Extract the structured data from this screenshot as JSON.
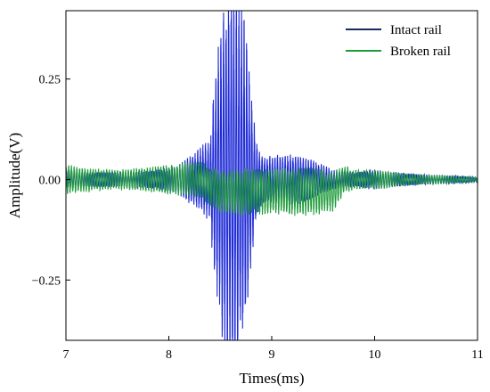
{
  "chart_data": {
    "type": "line",
    "title": "",
    "xlabel": "Times(ms)",
    "ylabel": "Amplitude(V)",
    "xlim": [
      7,
      11
    ],
    "ylim": [
      -0.4,
      0.42
    ],
    "xticks": [
      7,
      8,
      9,
      10,
      11
    ],
    "xtick_labels": [
      "7",
      "8",
      "9",
      "10",
      "11"
    ],
    "yticks": [
      -0.25,
      0,
      0.25
    ],
    "ytick_labels": [
      "−0.25",
      "0.00",
      "0.25"
    ],
    "grid": false,
    "legend_position": "top-right",
    "series": [
      {
        "name": "Intact rail",
        "color": "#1f2bd6",
        "legend_color": "#1b2a5c",
        "envelope": {
          "x": [
            7.0,
            7.2,
            7.5,
            7.9,
            8.1,
            8.2,
            8.3,
            8.4,
            8.45,
            8.5,
            8.55,
            8.6,
            8.65,
            8.7,
            8.75,
            8.8,
            8.85,
            8.9,
            9.0,
            9.2,
            9.4,
            9.6,
            9.8,
            10.0,
            10.2,
            10.5,
            10.8,
            11.0
          ],
          "amp": [
            0.02,
            0.015,
            0.015,
            0.02,
            0.03,
            0.05,
            0.065,
            0.09,
            0.22,
            0.3,
            0.37,
            0.4,
            0.39,
            0.37,
            0.3,
            0.18,
            0.08,
            0.05,
            0.05,
            0.055,
            0.04,
            0.02,
            0.015,
            0.02,
            0.015,
            0.01,
            0.008,
            0.005
          ]
        },
        "frequency_khz": 40
      },
      {
        "name": "Broken rail",
        "color": "#1e9b3a",
        "legend_color": "#1e9b3a",
        "envelope": {
          "x": [
            7.0,
            7.2,
            7.5,
            7.8,
            8.0,
            8.2,
            8.4,
            8.6,
            8.8,
            9.0,
            9.2,
            9.4,
            9.6,
            9.8,
            10.0,
            10.2,
            10.5,
            10.8,
            11.0
          ],
          "amp": [
            0.03,
            0.025,
            0.02,
            0.025,
            0.03,
            0.035,
            0.04,
            0.045,
            0.05,
            0.045,
            0.05,
            0.05,
            0.04,
            0.02,
            0.02,
            0.015,
            0.01,
            0.008,
            0.005
          ]
        },
        "offset": {
          "x": [
            7.0,
            8.3,
            8.5,
            9.0,
            9.6,
            9.7,
            11.0
          ],
          "y": [
            0.0,
            0.0,
            -0.03,
            -0.03,
            -0.03,
            0.0,
            0.0
          ]
        },
        "frequency_khz": 38
      }
    ]
  }
}
